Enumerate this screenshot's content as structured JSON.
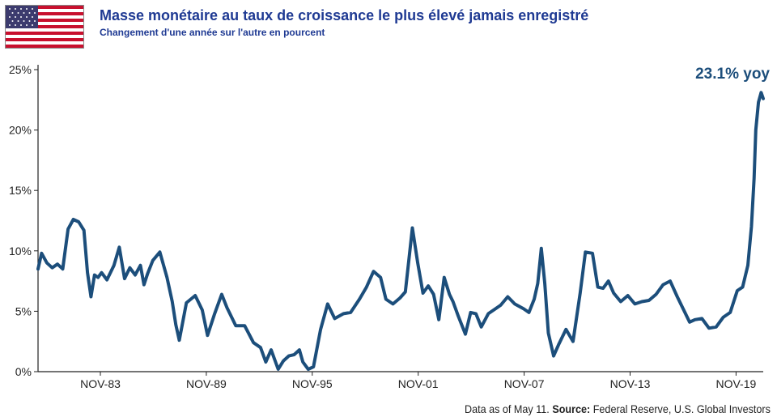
{
  "header": {
    "title": "Masse monétaire au taux de croissance le plus élevé jamais enregistré",
    "subtitle": "Changement d'une année sur l'autre en pourcent",
    "flag_icon": "us-flag-icon"
  },
  "footer": {
    "source_prefix": "Data as of May 11. ",
    "source_label": "Source:",
    "source_text": " Federal Reserve, U.S. Global Investors"
  },
  "colors": {
    "line": "#1c4e7b",
    "title": "#1f3a93"
  },
  "chart_data": {
    "type": "line",
    "title": "Masse monétaire au taux de croissance le plus élevé jamais enregistré",
    "subtitle": "Changement d'une année sur l'autre en pourcent",
    "ylim": [
      0,
      25
    ],
    "yticks": [
      "0%",
      "5%",
      "10%",
      "15%",
      "20%",
      "25%"
    ],
    "ytick_values": [
      0,
      5,
      10,
      15,
      20,
      25
    ],
    "xticks": [
      "NOV-83",
      "NOV-89",
      "NOV-95",
      "NOV-01",
      "NOV-07",
      "NOV-13",
      "NOV-19"
    ],
    "xtick_values": [
      1983.83,
      1989.83,
      1995.83,
      2001.83,
      2007.83,
      2013.83,
      2019.83
    ],
    "xlim": [
      1980.3,
      2021.37
    ],
    "grid": false,
    "annotation": "23.1% yoy",
    "series": [
      {
        "x": [
          1980.3,
          1980.5,
          1980.8,
          1981.1,
          1981.4,
          1981.7,
          1982.0,
          1982.3,
          1982.6,
          1982.9,
          1983.1,
          1983.3,
          1983.5,
          1983.7,
          1983.9,
          1984.2,
          1984.6,
          1984.9,
          1985.2,
          1985.5,
          1985.8,
          1986.1,
          1986.3,
          1986.5,
          1986.8,
          1987.2,
          1987.6,
          1987.9,
          1988.1,
          1988.3,
          1988.7,
          1989.2,
          1989.6,
          1989.9,
          1990.3,
          1990.7,
          1991.0,
          1991.5,
          1992.0,
          1992.5,
          1992.9,
          1993.2,
          1993.5,
          1993.9,
          1994.2,
          1994.5,
          1994.8,
          1995.1,
          1995.3,
          1995.6,
          1995.9,
          1996.3,
          1996.7,
          1997.1,
          1997.6,
          1998.0,
          1998.5,
          1998.9,
          1999.3,
          1999.7,
          2000.0,
          2000.4,
          2000.8,
          2001.1,
          2001.3,
          2001.5,
          2001.8,
          2002.1,
          2002.4,
          2002.7,
          2003.0,
          2003.3,
          2003.6,
          2003.8,
          2004.1,
          2004.5,
          2004.8,
          2005.1,
          2005.4,
          2005.8,
          2006.1,
          2006.5,
          2006.9,
          2007.3,
          2007.8,
          2008.1,
          2008.4,
          2008.6,
          2008.8,
          2009.0,
          2009.2,
          2009.5,
          2009.8,
          2010.2,
          2010.6,
          2011.0,
          2011.3,
          2011.7,
          2012.0,
          2012.3,
          2012.6,
          2012.9,
          2013.3,
          2013.7,
          2014.1,
          2014.5,
          2014.9,
          2015.3,
          2015.7,
          2016.1,
          2016.5,
          2016.9,
          2017.2,
          2017.5,
          2017.9,
          2018.3,
          2018.7,
          2019.1,
          2019.5,
          2019.9,
          2020.2,
          2020.5,
          2020.7,
          2020.85,
          2020.95,
          2021.1,
          2021.25,
          2021.37
        ],
        "y": [
          8.5,
          9.8,
          9.0,
          8.6,
          8.9,
          8.5,
          11.8,
          12.6,
          12.4,
          11.7,
          8.2,
          6.2,
          8.0,
          7.8,
          8.2,
          7.6,
          8.8,
          10.3,
          7.7,
          8.6,
          8.0,
          8.8,
          7.2,
          8.1,
          9.2,
          9.9,
          7.8,
          5.8,
          3.9,
          2.6,
          5.7,
          6.3,
          5.1,
          3.0,
          4.8,
          6.4,
          5.3,
          3.8,
          3.8,
          2.4,
          2.0,
          0.8,
          1.8,
          0.2,
          0.9,
          1.3,
          1.4,
          1.8,
          0.8,
          0.2,
          0.4,
          3.5,
          5.6,
          4.4,
          4.8,
          4.9,
          6.0,
          7.0,
          8.3,
          7.8,
          6.0,
          5.6,
          6.1,
          6.6,
          9.2,
          11.9,
          9.0,
          6.5,
          7.1,
          6.4,
          4.3,
          7.8,
          6.4,
          5.8,
          4.6,
          3.1,
          4.9,
          4.8,
          3.7,
          4.8,
          5.1,
          5.5,
          6.2,
          5.6,
          5.2,
          4.9,
          6.0,
          7.3,
          10.2,
          7.3,
          3.2,
          1.3,
          2.3,
          3.5,
          2.5,
          6.5,
          9.9,
          9.8,
          7.0,
          6.9,
          7.5,
          6.5,
          5.8,
          6.3,
          5.6,
          5.8,
          5.9,
          6.4,
          7.2,
          7.5,
          6.2,
          5.0,
          4.1,
          4.3,
          4.4,
          3.6,
          3.7,
          4.5,
          4.9,
          6.7,
          7.0,
          8.8,
          12.0,
          16.0,
          20.0,
          22.3,
          23.1,
          22.6
        ]
      }
    ]
  }
}
